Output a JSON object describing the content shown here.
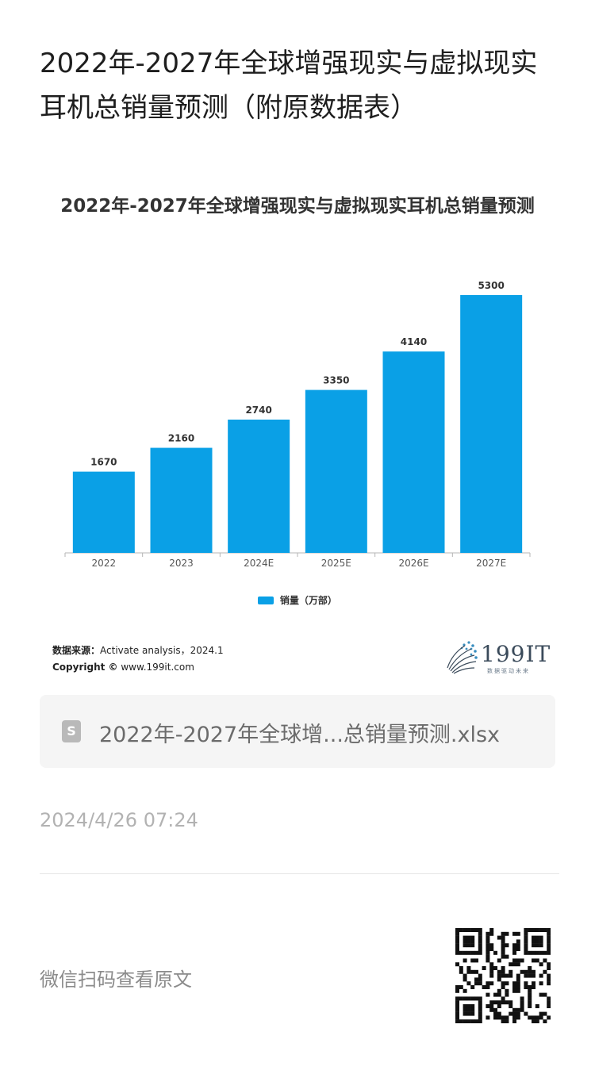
{
  "article": {
    "title": "2022年-2027年全球增强现实与虚拟现实耳机总销量预测（附原数据表）",
    "source_line_label": "数据来源：",
    "source_line_value": "Activate analysis，2024.1",
    "copyright_label": "Copyright ©",
    "copyright_value": " www.199it.com",
    "logo_text": "199IT",
    "logo_sub": "数据驱动未来",
    "attachment_name": "2022年-2027年全球增...总销量预测.xlsx",
    "attachment_icon": "S",
    "date": "2024/4/26 07:24",
    "qr_hint": "微信扫码查看原文"
  },
  "chart_data": {
    "type": "bar",
    "title": "2022年-2027年全球增强现实与虚拟现实耳机总销量预测",
    "categories": [
      "2022",
      "2023",
      "2024E",
      "2025E",
      "2026E",
      "2027E"
    ],
    "series": [
      {
        "name": "销量（万部）",
        "values": [
          1670,
          2160,
          2740,
          3350,
          4140,
          5300
        ]
      }
    ],
    "ylim": [
      0,
      5300
    ],
    "color": "#0aa0e6",
    "legend_position": "bottom",
    "grid": false
  }
}
